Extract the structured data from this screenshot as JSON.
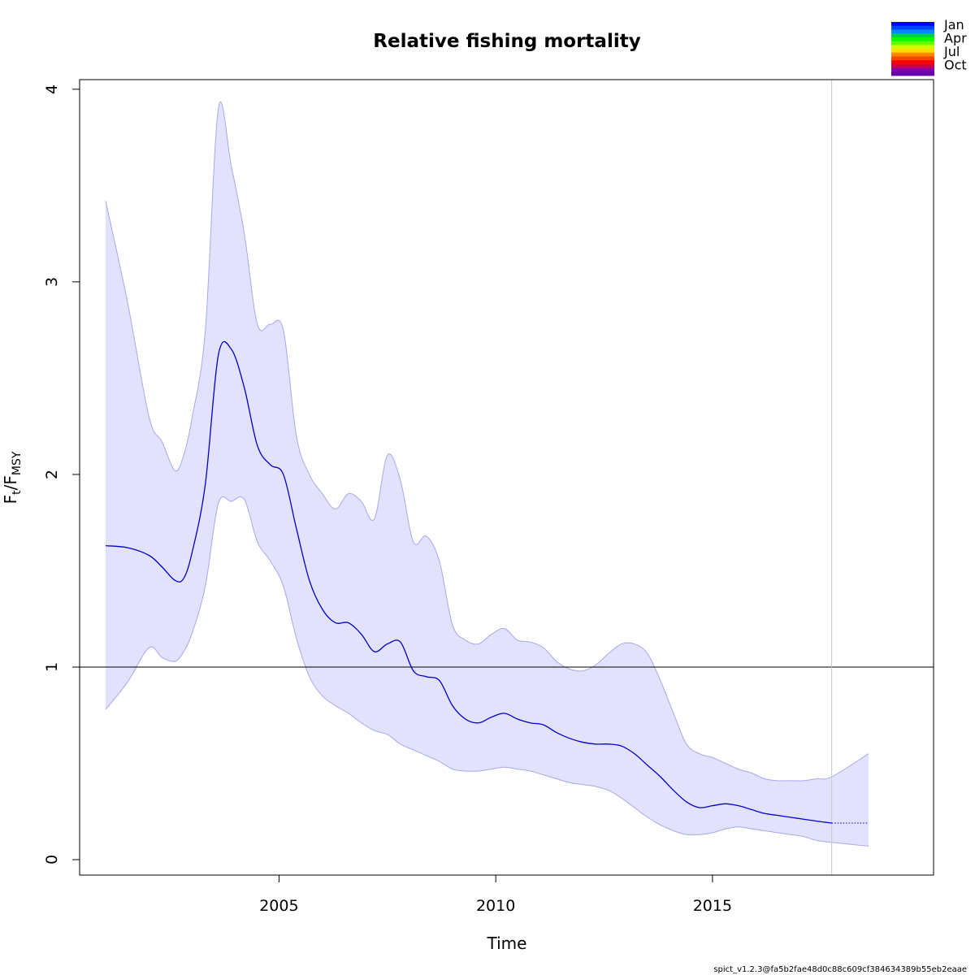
{
  "chart_data": {
    "type": "line",
    "title": "Relative fishing mortality",
    "xlabel": "Time",
    "ylabel": {
      "main": "F",
      "sub1": "t",
      "sep": "/F",
      "sub2": "MSY"
    },
    "xlim": [
      2000.4,
      2020.1
    ],
    "ylim": [
      -0.08,
      4.05
    ],
    "x_ticks": [
      2005,
      2010,
      2015
    ],
    "x_tick_labels": [
      "2005",
      "2010",
      "2015"
    ],
    "y_ticks": [
      0,
      1,
      2,
      3,
      4
    ],
    "y_tick_labels": [
      "0",
      "1",
      "2",
      "3",
      "4"
    ],
    "reference_line": 1,
    "forecast_start": 2017.75,
    "colors": {
      "estimate": "#0000cc",
      "band_fill": "#e2e2fc",
      "band_edge": "#a8a8ee",
      "reference": "#000000",
      "forecast_marker": "#c8c8c8"
    },
    "series": [
      {
        "role": "estimate",
        "x": [
          2001.0,
          2001.5,
          2002.0,
          2002.3,
          2002.6,
          2002.8,
          2003.0,
          2003.3,
          2003.6,
          2003.9,
          2004.2,
          2004.5,
          2004.8,
          2005.1,
          2005.4,
          2005.7,
          2006.0,
          2006.3,
          2006.6,
          2006.9,
          2007.2,
          2007.5,
          2007.8,
          2008.1,
          2008.4,
          2008.7,
          2009.0,
          2009.3,
          2009.6,
          2009.9,
          2010.2,
          2010.5,
          2010.8,
          2011.1,
          2011.4,
          2011.7,
          2012.0,
          2012.3,
          2012.6,
          2012.9,
          2013.2,
          2013.5,
          2013.8,
          2014.1,
          2014.4,
          2014.7,
          2015.0,
          2015.3,
          2015.6,
          2015.9,
          2016.2,
          2016.5,
          2016.8,
          2017.1,
          2017.4,
          2017.75
        ],
        "y": [
          1.63,
          1.62,
          1.58,
          1.52,
          1.45,
          1.46,
          1.6,
          1.95,
          2.62,
          2.65,
          2.45,
          2.15,
          2.05,
          2.0,
          1.72,
          1.45,
          1.3,
          1.23,
          1.23,
          1.17,
          1.08,
          1.12,
          1.13,
          0.98,
          0.95,
          0.93,
          0.8,
          0.73,
          0.71,
          0.74,
          0.76,
          0.73,
          0.71,
          0.7,
          0.66,
          0.63,
          0.61,
          0.6,
          0.6,
          0.59,
          0.55,
          0.49,
          0.43,
          0.36,
          0.3,
          0.27,
          0.28,
          0.29,
          0.28,
          0.26,
          0.24,
          0.23,
          0.22,
          0.21,
          0.2,
          0.19
        ]
      },
      {
        "role": "forecast",
        "x": [
          2017.75,
          2018.6
        ],
        "y": [
          0.19,
          0.19
        ]
      },
      {
        "role": "upper_ci",
        "x": [
          2001.0,
          2001.5,
          2002.0,
          2002.3,
          2002.6,
          2002.8,
          2003.0,
          2003.3,
          2003.6,
          2003.9,
          2004.2,
          2004.5,
          2004.8,
          2005.1,
          2005.4,
          2005.7,
          2006.0,
          2006.3,
          2006.6,
          2006.9,
          2007.2,
          2007.5,
          2007.8,
          2008.1,
          2008.4,
          2008.7,
          2009.0,
          2009.3,
          2009.6,
          2009.9,
          2010.2,
          2010.5,
          2010.8,
          2011.1,
          2011.4,
          2011.7,
          2012.0,
          2012.3,
          2012.6,
          2012.9,
          2013.2,
          2013.5,
          2013.8,
          2014.1,
          2014.4,
          2014.7,
          2015.0,
          2015.3,
          2015.6,
          2015.9,
          2016.2,
          2016.5,
          2016.8,
          2017.1,
          2017.4,
          2017.75,
          2018.6
        ],
        "y": [
          3.42,
          2.9,
          2.3,
          2.17,
          2.02,
          2.1,
          2.3,
          2.75,
          3.9,
          3.6,
          3.25,
          2.78,
          2.78,
          2.75,
          2.2,
          2.0,
          1.9,
          1.82,
          1.9,
          1.86,
          1.77,
          2.1,
          1.97,
          1.65,
          1.68,
          1.55,
          1.22,
          1.14,
          1.12,
          1.17,
          1.2,
          1.14,
          1.13,
          1.1,
          1.03,
          0.99,
          0.98,
          1.01,
          1.07,
          1.12,
          1.12,
          1.07,
          0.93,
          0.76,
          0.6,
          0.55,
          0.53,
          0.5,
          0.47,
          0.45,
          0.42,
          0.41,
          0.41,
          0.41,
          0.42,
          0.43,
          0.55
        ]
      },
      {
        "role": "lower_ci",
        "x": [
          2001.0,
          2001.5,
          2002.0,
          2002.3,
          2002.6,
          2002.8,
          2003.0,
          2003.3,
          2003.6,
          2003.9,
          2004.2,
          2004.5,
          2004.8,
          2005.1,
          2005.4,
          2005.7,
          2006.0,
          2006.3,
          2006.6,
          2006.9,
          2007.2,
          2007.5,
          2007.8,
          2008.1,
          2008.4,
          2008.7,
          2009.0,
          2009.3,
          2009.6,
          2009.9,
          2010.2,
          2010.5,
          2010.8,
          2011.1,
          2011.4,
          2011.7,
          2012.0,
          2012.3,
          2012.6,
          2012.9,
          2013.2,
          2013.5,
          2013.8,
          2014.1,
          2014.4,
          2014.7,
          2015.0,
          2015.3,
          2015.6,
          2015.9,
          2016.2,
          2016.5,
          2016.8,
          2017.1,
          2017.4,
          2017.75,
          2018.6
        ],
        "y": [
          0.78,
          0.92,
          1.1,
          1.05,
          1.03,
          1.08,
          1.18,
          1.42,
          1.85,
          1.86,
          1.87,
          1.65,
          1.55,
          1.42,
          1.15,
          0.95,
          0.85,
          0.8,
          0.76,
          0.71,
          0.67,
          0.65,
          0.6,
          0.57,
          0.54,
          0.51,
          0.47,
          0.46,
          0.46,
          0.47,
          0.48,
          0.47,
          0.46,
          0.44,
          0.42,
          0.4,
          0.39,
          0.38,
          0.36,
          0.32,
          0.27,
          0.22,
          0.18,
          0.15,
          0.13,
          0.13,
          0.14,
          0.16,
          0.17,
          0.16,
          0.15,
          0.14,
          0.13,
          0.12,
          0.1,
          0.09,
          0.07
        ]
      }
    ],
    "legend": {
      "placement": "top-right",
      "labels": [
        "Jan",
        "Apr",
        "Jul",
        "Oct"
      ],
      "swatches": [
        "#0000ff",
        "#0044ff",
        "#0088ff",
        "#00cc44",
        "#00ff00",
        "#66ff00",
        "#ccff00",
        "#ffdd00",
        "#ff8800",
        "#ff4400",
        "#ff0000",
        "#cc0044",
        "#8800aa",
        "#6600aa"
      ]
    }
  },
  "footer": "spict_v1.2.3@fa5b2fae48d0c88c609cf384634389b55eb2eaae"
}
